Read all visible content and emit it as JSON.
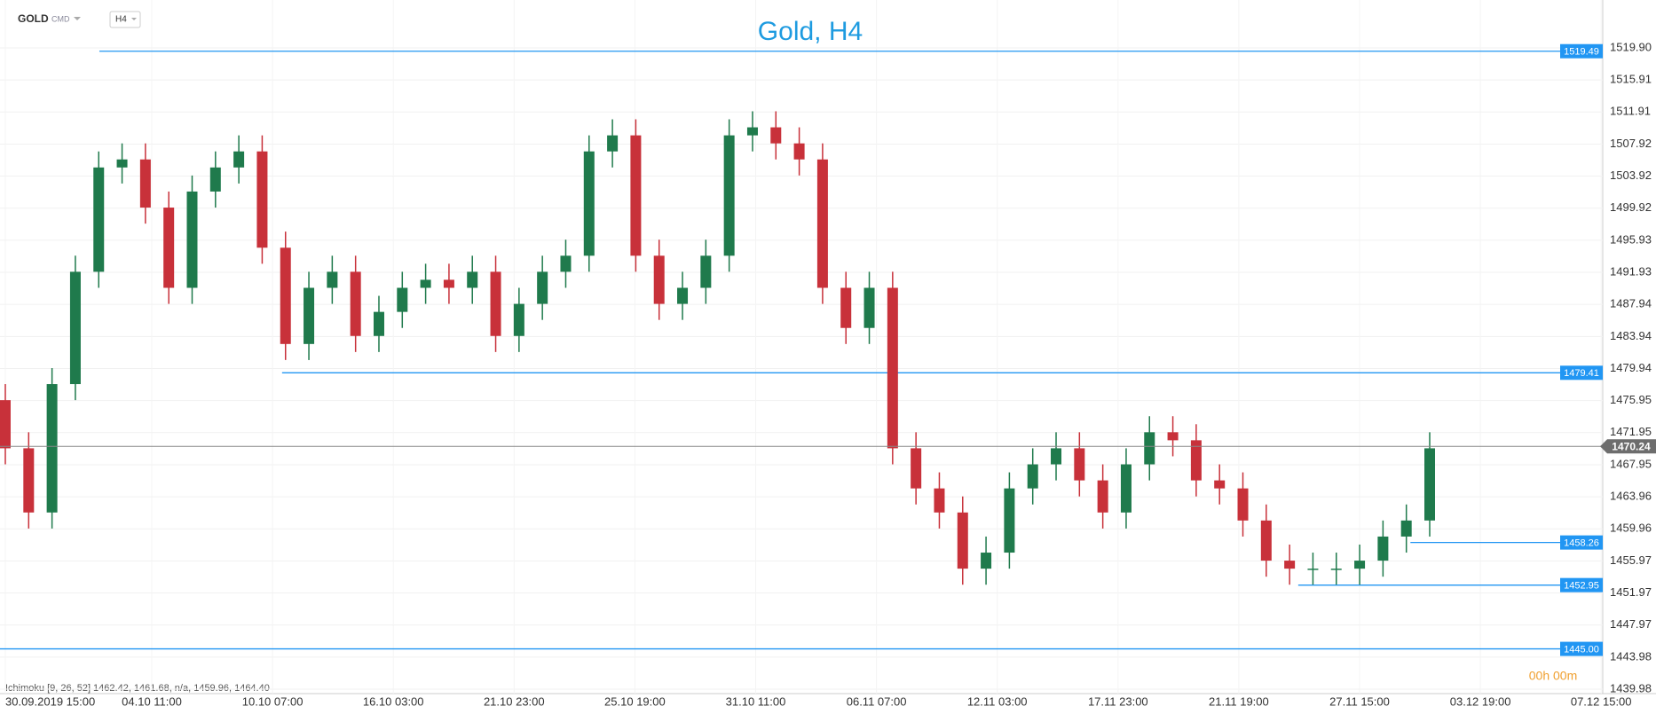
{
  "header": {
    "symbol": "GOLD",
    "market": "CMD",
    "timeframe": "H4"
  },
  "indicator": "Ichimoku  [9, 26, 52]  1462.42,  1461.68,  n/a,  1459.96,  1464.40",
  "timer": "00h 00m",
  "chart_data": {
    "type": "candlestick",
    "title": "Gold, H4",
    "categories": [
      "30.09.2019  15:00",
      "04.10  11:00",
      "10.10  07:00",
      "16.10  03:00",
      "21.10  23:00",
      "25.10  19:00",
      "31.10  11:00",
      "06.11  07:00",
      "12.11  03:00",
      "17.11  23:00",
      "21.11  19:00",
      "27.11  15:00",
      "03.12  19:00",
      "07.12  15:00"
    ],
    "open": [
      1476,
      1470,
      1462,
      1478,
      1492,
      1505,
      1506,
      1500,
      1490,
      1502,
      1505,
      1507,
      1495,
      1483,
      1490,
      1492,
      1484,
      1487,
      1490,
      1491,
      1490,
      1492,
      1484,
      1488,
      1492,
      1494,
      1507,
      1509,
      1494,
      1488,
      1490,
      1494,
      1509,
      1510,
      1508,
      1506,
      1490,
      1485,
      1490,
      1470,
      1465,
      1462,
      1455,
      1457,
      1465,
      1468,
      1470,
      1466,
      1462,
      1468,
      1472,
      1471,
      1466,
      1465,
      1461,
      1456,
      1455,
      1455,
      1455,
      1456,
      1459,
      1461
    ],
    "high": [
      1478,
      1472,
      1480,
      1494,
      1507,
      1508,
      1508,
      1502,
      1504,
      1507,
      1509,
      1509,
      1497,
      1492,
      1494,
      1494,
      1489,
      1492,
      1493,
      1493,
      1494,
      1494,
      1490,
      1494,
      1496,
      1509,
      1511,
      1511,
      1496,
      1492,
      1496,
      1511,
      1512,
      1512,
      1510,
      1508,
      1492,
      1492,
      1492,
      1472,
      1467,
      1464,
      1459,
      1467,
      1470,
      1472,
      1472,
      1468,
      1470,
      1474,
      1474,
      1473,
      1468,
      1467,
      1463,
      1458,
      1457,
      1457,
      1458,
      1461,
      1463,
      1472
    ],
    "low": [
      1468,
      1460,
      1460,
      1476,
      1490,
      1503,
      1498,
      1488,
      1488,
      1500,
      1503,
      1493,
      1481,
      1481,
      1488,
      1482,
      1482,
      1485,
      1488,
      1488,
      1488,
      1482,
      1482,
      1486,
      1490,
      1492,
      1505,
      1492,
      1486,
      1486,
      1488,
      1492,
      1507,
      1506,
      1504,
      1488,
      1483,
      1483,
      1468,
      1463,
      1460,
      1453,
      1453,
      1455,
      1463,
      1466,
      1464,
      1460,
      1460,
      1466,
      1469,
      1464,
      1463,
      1459,
      1454,
      1453,
      1453,
      1453,
      1453,
      1454,
      1457,
      1459
    ],
    "close": [
      1470,
      1462,
      1478,
      1492,
      1505,
      1506,
      1500,
      1490,
      1502,
      1505,
      1507,
      1495,
      1483,
      1490,
      1492,
      1484,
      1487,
      1490,
      1491,
      1490,
      1492,
      1484,
      1488,
      1492,
      1494,
      1507,
      1509,
      1494,
      1488,
      1490,
      1494,
      1509,
      1510,
      1508,
      1506,
      1490,
      1485,
      1490,
      1470,
      1465,
      1462,
      1455,
      1457,
      1465,
      1468,
      1470,
      1466,
      1462,
      1468,
      1472,
      1471,
      1466,
      1465,
      1461,
      1456,
      1455,
      1455,
      1455,
      1456,
      1459,
      1461,
      1470
    ],
    "up_color": "#1f7a4c",
    "down_color": "#c8313a",
    "levels": [
      1519.49,
      1479.41,
      1458.26,
      1452.95,
      {
        "value": 1445.0,
        "label": "1445.00"
      }
    ],
    "level_color": "#2196f3",
    "current_price": 1470.24,
    "ylim": [
      1439.98,
      1525.87
    ],
    "yticks": [
      {
        "value": 1519.9,
        "label": "1519.90"
      },
      1515.91,
      1511.91,
      1507.92,
      1503.92,
      1499.92,
      1495.93,
      1491.93,
      1487.94,
      1483.94,
      1479.94,
      1475.95,
      1471.95,
      1467.95,
      1463.96,
      1459.96,
      1455.97,
      1451.97,
      1447.97,
      1443.98,
      1439.98
    ],
    "grid": true
  }
}
